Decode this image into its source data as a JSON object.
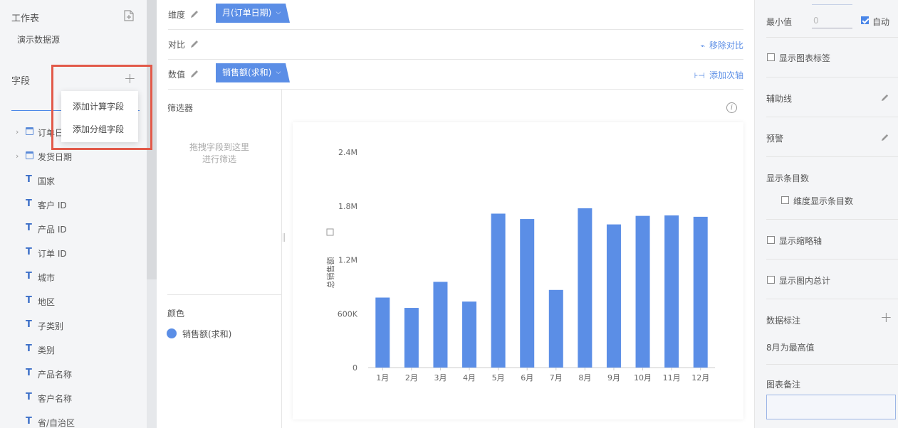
{
  "sidebar": {
    "worksheet_title": "工作表",
    "datasource": "演示数据源",
    "fields_title": "字段",
    "fields": [
      {
        "label": "订单日",
        "type": "date"
      },
      {
        "label": "发货日期",
        "type": "date"
      },
      {
        "label": "国家",
        "type": "text"
      },
      {
        "label": "客户 ID",
        "type": "text"
      },
      {
        "label": "产品 ID",
        "type": "text"
      },
      {
        "label": "订单 ID",
        "type": "text"
      },
      {
        "label": "城市",
        "type": "text"
      },
      {
        "label": "地区",
        "type": "text"
      },
      {
        "label": "子类别",
        "type": "text"
      },
      {
        "label": "类别",
        "type": "text"
      },
      {
        "label": "产品名称",
        "type": "text"
      },
      {
        "label": "客户名称",
        "type": "text"
      },
      {
        "label": "省/自治区",
        "type": "text"
      }
    ],
    "text_type_icon": "T"
  },
  "popup_menu": {
    "items": [
      "添加计算字段",
      "添加分组字段"
    ]
  },
  "editor": {
    "dimension_label": "维度",
    "dimension_pill": "月(订单日期)",
    "compare_label": "对比",
    "remove_compare": "移除对比",
    "value_label": "数值",
    "value_pill": "销售额(求和)",
    "add_secondary_axis": "添加次轴",
    "filter_title": "筛选器",
    "filter_hint_line1": "拖拽字段到这里",
    "filter_hint_line2": "进行筛选",
    "color_title": "颜色",
    "color_legend": "销售额(求和)",
    "color_legend_color": "#5b8ee6",
    "dropdown_glyph": "⌵"
  },
  "chart_data": {
    "type": "bar",
    "categories": [
      "1月",
      "2月",
      "3月",
      "4月",
      "5月",
      "6月",
      "7月",
      "8月",
      "9月",
      "10月",
      "11月",
      "12月"
    ],
    "values": [
      780000,
      665000,
      955000,
      735000,
      1715000,
      1655000,
      865000,
      1775000,
      1595000,
      1690000,
      1695000,
      1680000
    ],
    "ylabel": "总销售额",
    "ylim": [
      0,
      2400000
    ],
    "yticks": [
      0,
      600000,
      1200000,
      1800000,
      2400000
    ],
    "ytick_labels": [
      "0",
      "600K",
      "1.2M",
      "1.8M",
      "2.4M"
    ],
    "bar_color": "#5b8ee6",
    "grid": false
  },
  "right_panel": {
    "min_label": "最小值",
    "min_placeholder": "0",
    "auto_label": "自动",
    "auto_checked": true,
    "show_chart_label": "显示图表标签",
    "aux_line": "辅助线",
    "warning": "预警",
    "show_count": "显示条目数",
    "dim_show_count": "维度显示条目数",
    "show_thumb_axis": "显示缩略轴",
    "show_total": "显示图内总计",
    "data_annotation": "数据标注",
    "annotation_text": "8月为最高值",
    "chart_note": "图表备注"
  }
}
